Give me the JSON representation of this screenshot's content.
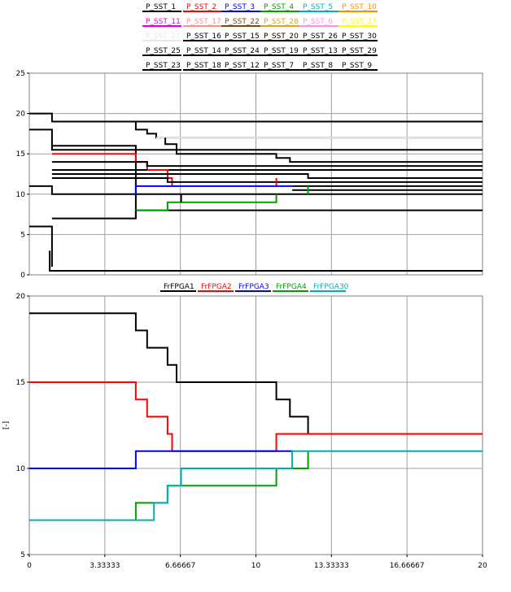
{
  "chart_data": [
    {
      "type": "line",
      "step": true,
      "xlim": [
        0,
        20
      ],
      "ylim": [
        0,
        25
      ],
      "yticks": [
        {
          "label": "0",
          "value": 0
        },
        {
          "label": "5",
          "value": 5
        },
        {
          "label": "10",
          "value": 10
        },
        {
          "label": "15",
          "value": 15
        },
        {
          "label": "20",
          "value": 20
        },
        {
          "label": "25",
          "value": 25
        }
      ],
      "xgrid_values": [
        3.33333,
        6.66667,
        10,
        13.33333,
        16.66667
      ],
      "ygrid_values": [
        5,
        10,
        15,
        20
      ],
      "grid": true,
      "legend_placement": "top",
      "legend_rows": [
        [
          {
            "name": "P_SST_1",
            "color": "#000000"
          },
          {
            "name": "P_SST_2",
            "color": "#ff0000"
          },
          {
            "name": "P_SST_3",
            "color": "#0000ff"
          },
          {
            "name": "P_SST_4",
            "color": "#00a000"
          },
          {
            "name": "P_SST_5",
            "color": "#00b0b0"
          },
          {
            "name": "P_SST_10",
            "color": "#ff8c00"
          }
        ],
        [
          {
            "name": "P_SST_11",
            "color": "#e000e0"
          },
          {
            "name": "P_SST_17",
            "color": "#ff9090"
          },
          {
            "name": "P_SST_22",
            "color": "#7a4a10"
          },
          {
            "name": "P_SST_28",
            "color": "#e0a020"
          },
          {
            "name": "P_SST_6",
            "color": "#ff90e0"
          },
          {
            "name": "P_SST_27",
            "color": "#ffff00"
          }
        ],
        [
          {
            "name": "P_SST_21",
            "color": "#e8e8e8"
          },
          {
            "name": "P_SST_16",
            "color": "#000000"
          },
          {
            "name": "P_SST_15",
            "color": "#000000"
          },
          {
            "name": "P_SST_20",
            "color": "#000000"
          },
          {
            "name": "P_SST_26",
            "color": "#000000"
          },
          {
            "name": "P_SST_30",
            "color": "#000000"
          }
        ],
        [
          {
            "name": "P_SST_25",
            "color": "#000000"
          },
          {
            "name": "P_SST_14",
            "color": "#000000"
          },
          {
            "name": "P_SST_24",
            "color": "#000000"
          },
          {
            "name": "P_SST_19",
            "color": "#000000"
          },
          {
            "name": "P_SST_13",
            "color": "#000000"
          },
          {
            "name": "P_SST_29",
            "color": "#000000"
          }
        ],
        [
          {
            "name": "P_SST_23",
            "color": "#000000"
          },
          {
            "name": "P_SST_18",
            "color": "#000000"
          },
          {
            "name": "P_SST_12",
            "color": "#000000"
          },
          {
            "name": "P_SST_7",
            "color": "#000000"
          },
          {
            "name": "P_SST_8",
            "color": "#000000"
          },
          {
            "name": "P_SST_9",
            "color": "#000000"
          }
        ]
      ],
      "series": [
        {
          "color": "#000000",
          "points": [
            [
              0,
              20
            ],
            [
              1,
              20
            ],
            [
              1,
              19
            ],
            [
              20,
              19
            ]
          ]
        },
        {
          "color": "#000000",
          "points": [
            [
              0,
              18
            ],
            [
              1,
              18
            ],
            [
              1,
              15.5
            ],
            [
              20,
              15.5
            ]
          ]
        },
        {
          "color": "#000000",
          "points": [
            [
              1,
              16
            ],
            [
              4.7,
              16
            ],
            [
              4.7,
              8
            ],
            [
              20,
              8
            ]
          ]
        },
        {
          "color": "#000000",
          "points": [
            [
              1,
              19
            ],
            [
              4.7,
              19
            ],
            [
              4.7,
              18
            ],
            [
              5.2,
              18
            ],
            [
              5.2,
              17.5
            ],
            [
              5.6,
              17.5
            ],
            [
              5.6,
              17
            ],
            [
              20,
              17
            ]
          ]
        },
        {
          "color": "#e8e8e8",
          "points": [
            [
              5.6,
              17
            ],
            [
              20,
              17
            ]
          ]
        },
        {
          "color": "#000000",
          "points": [
            [
              6,
              17
            ],
            [
              6,
              16.2
            ],
            [
              6.5,
              16.2
            ],
            [
              6.5,
              15
            ],
            [
              10.9,
              15
            ],
            [
              10.9,
              14.5
            ],
            [
              11.5,
              14.5
            ],
            [
              11.5,
              14
            ],
            [
              20,
              14
            ]
          ]
        },
        {
          "color": "#ff0000",
          "points": [
            [
              1,
              15
            ],
            [
              4.7,
              15
            ],
            [
              4.7,
              14
            ],
            [
              5.2,
              14
            ],
            [
              5.2,
              13
            ]
          ]
        },
        {
          "color": "#000000",
          "points": [
            [
              1,
              14
            ],
            [
              5.2,
              14
            ],
            [
              5.2,
              13.5
            ],
            [
              20,
              13.5
            ]
          ]
        },
        {
          "color": "#000000",
          "points": [
            [
              1,
              13
            ],
            [
              20,
              13
            ]
          ]
        },
        {
          "color": "#ff0000",
          "points": [
            [
              5.2,
              13
            ],
            [
              6.1,
              13
            ],
            [
              6.1,
              12
            ],
            [
              6.3,
              12
            ],
            [
              6.3,
              11
            ]
          ]
        },
        {
          "color": "#000000",
          "points": [
            [
              1,
              12.5
            ],
            [
              12.3,
              12.5
            ],
            [
              12.3,
              12
            ],
            [
              20,
              12
            ]
          ]
        },
        {
          "color": "#000000",
          "points": [
            [
              1,
              12
            ],
            [
              6.1,
              12
            ],
            [
              6.1,
              11.5
            ],
            [
              20,
              11.5
            ]
          ]
        },
        {
          "color": "#ff0000",
          "points": [
            [
              10.9,
              11
            ],
            [
              10.9,
              12
            ]
          ]
        },
        {
          "color": "#000000",
          "points": [
            [
              0,
              11
            ],
            [
              1,
              11
            ],
            [
              1,
              10
            ],
            [
              20,
              10
            ]
          ]
        },
        {
          "color": "#0000ff",
          "points": [
            [
              4.7,
              10
            ],
            [
              4.7,
              11
            ],
            [
              11.6,
              11
            ]
          ]
        },
        {
          "color": "#000000",
          "points": [
            [
              11.6,
              11
            ],
            [
              20,
              11
            ]
          ]
        },
        {
          "color": "#000000",
          "points": [
            [
              11.6,
              10.5
            ],
            [
              20,
              10.5
            ]
          ]
        },
        {
          "color": "#00a000",
          "points": [
            [
              12.3,
              10
            ],
            [
              12.3,
              11
            ]
          ]
        },
        {
          "color": "#00a000",
          "points": [
            [
              4.7,
              7
            ],
            [
              4.7,
              8
            ],
            [
              6.1,
              8
            ],
            [
              6.1,
              9
            ],
            [
              6.7,
              9
            ],
            [
              10.9,
              9
            ],
            [
              10.9,
              10
            ]
          ]
        },
        {
          "color": "#000000",
          "points": [
            [
              6.7,
              9
            ],
            [
              6.7,
              10
            ]
          ]
        },
        {
          "color": "#000000",
          "points": [
            [
              0,
              6
            ],
            [
              1,
              6
            ],
            [
              1,
              1
            ]
          ]
        },
        {
          "color": "#000000",
          "points": [
            [
              1,
              7
            ],
            [
              4.7,
              7
            ],
            [
              4.7,
              8
            ]
          ]
        },
        {
          "color": "#000000",
          "points": [
            [
              0.9,
              3
            ],
            [
              0.9,
              0.5
            ],
            [
              1,
              0.5
            ],
            [
              20,
              0.5
            ]
          ]
        }
      ]
    },
    {
      "type": "line",
      "step": true,
      "ylabel": "[-]",
      "xlim": [
        0,
        20
      ],
      "ylim": [
        5,
        20
      ],
      "xticks": [
        {
          "label": "0",
          "value": 0
        },
        {
          "label": "3.33333",
          "value": 3.33333
        },
        {
          "label": "6.66667",
          "value": 6.66667
        },
        {
          "label": "10",
          "value": 10
        },
        {
          "label": "13.33333",
          "value": 13.33333
        },
        {
          "label": "16.66667",
          "value": 16.66667
        },
        {
          "label": "20",
          "value": 20
        }
      ],
      "yticks": [
        {
          "label": "5",
          "value": 5
        },
        {
          "label": "10",
          "value": 10
        },
        {
          "label": "15",
          "value": 15
        },
        {
          "label": "20",
          "value": 20
        }
      ],
      "xgrid_values": [
        3.33333,
        6.66667,
        10,
        13.33333,
        16.66667
      ],
      "ygrid_values": [
        10,
        15
      ],
      "grid": true,
      "legend_placement": "top",
      "legend_rows": [
        [
          {
            "name": "FrFPGA1",
            "color": "#000000"
          },
          {
            "name": "FrFPGA2",
            "color": "#ff0000"
          },
          {
            "name": "FrFPGA3",
            "color": "#0000ff"
          },
          {
            "name": "FrFPGA4",
            "color": "#00a000"
          },
          {
            "name": "FrFPGA30",
            "color": "#00b0b0"
          }
        ]
      ],
      "series": [
        {
          "name": "FrFPGA1",
          "color": "#000000",
          "points": [
            [
              0,
              19
            ],
            [
              4.7,
              19
            ],
            [
              4.7,
              18
            ],
            [
              5.2,
              18
            ],
            [
              5.2,
              17
            ],
            [
              6.1,
              17
            ],
            [
              6.1,
              16
            ],
            [
              6.5,
              16
            ],
            [
              6.5,
              15
            ],
            [
              10.9,
              15
            ],
            [
              10.9,
              14
            ],
            [
              11.5,
              14
            ],
            [
              11.5,
              13
            ],
            [
              12.3,
              13
            ],
            [
              12.3,
              12
            ]
          ]
        },
        {
          "name": "FrFPGA2",
          "color": "#ff0000",
          "points": [
            [
              0,
              15
            ],
            [
              4.7,
              15
            ],
            [
              4.7,
              14
            ],
            [
              5.2,
              14
            ],
            [
              5.2,
              13
            ],
            [
              6.1,
              13
            ],
            [
              6.1,
              12
            ],
            [
              6.3,
              12
            ],
            [
              6.3,
              11
            ],
            [
              10.9,
              11
            ],
            [
              10.9,
              12
            ],
            [
              20,
              12
            ]
          ]
        },
        {
          "name": "FrFPGA3",
          "color": "#0000ff",
          "points": [
            [
              0,
              10
            ],
            [
              4.7,
              10
            ],
            [
              4.7,
              11
            ],
            [
              11.6,
              11
            ]
          ]
        },
        {
          "name": "FrFPGA4",
          "color": "#00a000",
          "points": [
            [
              4.7,
              7
            ],
            [
              4.7,
              8
            ],
            [
              6.1,
              8
            ],
            [
              6.1,
              9
            ],
            [
              6.7,
              9
            ],
            [
              10.9,
              9
            ],
            [
              10.9,
              10
            ],
            [
              12.3,
              10
            ],
            [
              12.3,
              11
            ]
          ]
        },
        {
          "name": "FrFPGA30",
          "color": "#00b0b0",
          "points": [
            [
              0,
              7
            ],
            [
              5.5,
              7
            ],
            [
              5.5,
              8
            ],
            [
              6.1,
              8
            ],
            [
              6.1,
              9
            ],
            [
              6.7,
              9
            ],
            [
              6.7,
              10
            ],
            [
              11.6,
              10
            ],
            [
              11.6,
              11
            ],
            [
              20,
              11
            ]
          ]
        }
      ]
    }
  ]
}
